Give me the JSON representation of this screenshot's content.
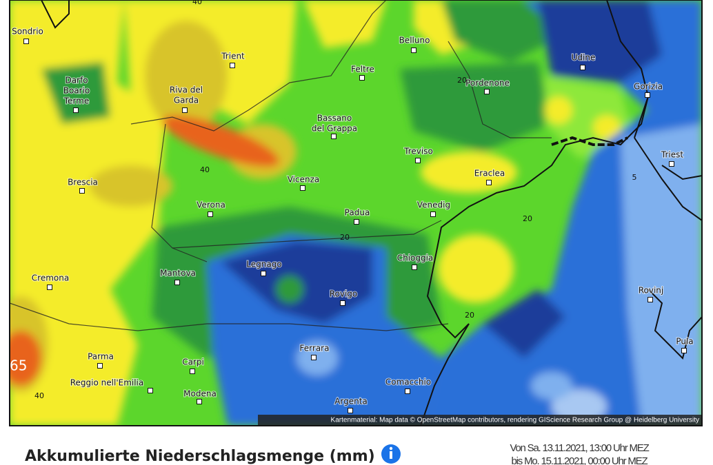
{
  "map": {
    "cities": [
      {
        "lines": [
          "Sondrio"
        ]
      },
      {
        "lines": [
          "Trient"
        ]
      },
      {
        "lines": [
          "Belluno"
        ]
      },
      {
        "lines": [
          "Udine"
        ]
      },
      {
        "lines": [
          "Feltre"
        ]
      },
      {
        "lines": [
          "Pordenone"
        ]
      },
      {
        "lines": [
          "Gorizia"
        ]
      },
      {
        "lines": [
          "Darfo",
          "Boario",
          "Terme"
        ]
      },
      {
        "lines": [
          "Riva del",
          "Garda"
        ]
      },
      {
        "lines": [
          "Bassano",
          "del Grappa"
        ]
      },
      {
        "lines": [
          "Treviso"
        ]
      },
      {
        "lines": [
          "Triest"
        ]
      },
      {
        "lines": [
          "Eraclea"
        ]
      },
      {
        "lines": [
          "Brescia"
        ]
      },
      {
        "lines": [
          "Vicenza"
        ]
      },
      {
        "lines": [
          "Verona"
        ]
      },
      {
        "lines": [
          "Venedig"
        ]
      },
      {
        "lines": [
          "Padua"
        ]
      },
      {
        "lines": [
          "Legnago"
        ]
      },
      {
        "lines": [
          "Chioggia"
        ]
      },
      {
        "lines": [
          "Mantova"
        ]
      },
      {
        "lines": [
          "Cremona"
        ]
      },
      {
        "lines": [
          "Rovigo"
        ]
      },
      {
        "lines": [
          "Rovinj"
        ]
      },
      {
        "lines": [
          "Pula"
        ]
      },
      {
        "lines": [
          "Ferrara"
        ]
      },
      {
        "lines": [
          "Parma"
        ]
      },
      {
        "lines": [
          "Carpi"
        ]
      },
      {
        "lines": [
          "Reggio nell'Emilia"
        ]
      },
      {
        "lines": [
          "Comacchio"
        ]
      },
      {
        "lines": [
          "Modena"
        ]
      },
      {
        "lines": [
          "Argenta"
        ]
      }
    ],
    "contour_labels": [
      "40",
      "40",
      "20",
      "20",
      "20",
      "20",
      "5",
      "40"
    ],
    "max_label": "65",
    "attribution": "Kartenmaterial: Map data © OpenStreetMap contributors, rendering GIScience Research Group @ Heidelberg University"
  },
  "footer": {
    "title": "Akkumulierte Niederschlagsmenge (mm)",
    "date_from": "Von Sa. 13.11.2021, 13:00 Uhr MEZ",
    "date_to": "bis Mo. 15.11.2021, 00:00 Uhr MEZ"
  }
}
